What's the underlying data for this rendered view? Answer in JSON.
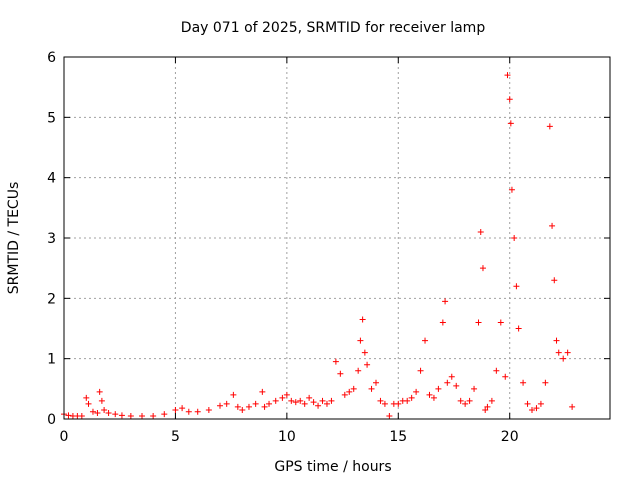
{
  "chart_data": {
    "type": "scatter",
    "title": "Day 071 of 2025, SRMTID for receiver lamp",
    "xlabel": "GPS time / hours",
    "ylabel": "SRMTID / TECUs",
    "xlim": [
      0,
      24.5
    ],
    "ylim": [
      0,
      6
    ],
    "xticks": [
      0,
      5,
      10,
      15,
      20
    ],
    "yticks": [
      0,
      1,
      2,
      3,
      4,
      5,
      6
    ],
    "xtick_labels": [
      "0",
      "5",
      "10",
      "15",
      "20"
    ],
    "ytick_labels": [
      "0",
      "1",
      "2",
      "3",
      "4",
      "5",
      "6"
    ],
    "grid": true,
    "marker": "+",
    "color": "#ff0000",
    "series": [
      {
        "name": "SRMTID",
        "x": [
          0.0,
          0.2,
          0.4,
          0.6,
          0.8,
          1.0,
          1.1,
          1.3,
          1.5,
          1.6,
          1.7,
          1.8,
          2.0,
          2.3,
          2.6,
          3.0,
          3.5,
          4.0,
          4.5,
          5.0,
          5.3,
          5.6,
          6.0,
          6.5,
          7.0,
          7.3,
          7.6,
          7.8,
          8.0,
          8.3,
          8.6,
          8.9,
          9.0,
          9.2,
          9.5,
          9.8,
          10.0,
          10.2,
          10.4,
          10.6,
          10.8,
          11.0,
          11.2,
          11.4,
          11.6,
          11.8,
          12.0,
          12.2,
          12.4,
          12.6,
          12.8,
          13.0,
          13.2,
          13.3,
          13.4,
          13.5,
          13.6,
          13.8,
          14.0,
          14.2,
          14.4,
          14.6,
          14.8,
          15.0,
          15.2,
          15.4,
          15.6,
          15.8,
          16.0,
          16.2,
          16.4,
          16.6,
          16.8,
          17.0,
          17.1,
          17.2,
          17.4,
          17.6,
          17.8,
          18.0,
          18.2,
          18.4,
          18.6,
          18.7,
          18.8,
          18.9,
          19.0,
          19.2,
          19.4,
          19.6,
          19.8,
          19.9,
          20.0,
          20.05,
          20.1,
          20.2,
          20.3,
          20.4,
          20.6,
          20.8,
          21.0,
          21.2,
          21.4,
          21.6,
          21.8,
          21.9,
          22.0,
          22.1,
          22.2,
          22.4,
          22.6,
          22.8
        ],
        "y": [
          0.08,
          0.06,
          0.05,
          0.05,
          0.05,
          0.35,
          0.25,
          0.12,
          0.1,
          0.45,
          0.3,
          0.15,
          0.1,
          0.08,
          0.06,
          0.05,
          0.05,
          0.05,
          0.08,
          0.15,
          0.18,
          0.12,
          0.12,
          0.15,
          0.22,
          0.25,
          0.4,
          0.2,
          0.15,
          0.2,
          0.25,
          0.45,
          0.2,
          0.25,
          0.3,
          0.35,
          0.4,
          0.3,
          0.28,
          0.3,
          0.25,
          0.35,
          0.28,
          0.22,
          0.3,
          0.25,
          0.3,
          0.95,
          0.75,
          0.4,
          0.45,
          0.5,
          0.8,
          1.3,
          1.65,
          1.1,
          0.9,
          0.5,
          0.6,
          0.3,
          0.25,
          0.05,
          0.25,
          0.25,
          0.3,
          0.3,
          0.35,
          0.45,
          0.8,
          1.3,
          0.4,
          0.35,
          0.5,
          1.6,
          1.95,
          0.6,
          0.7,
          0.55,
          0.3,
          0.25,
          0.3,
          0.5,
          1.6,
          3.1,
          2.5,
          0.15,
          0.2,
          0.3,
          0.8,
          1.6,
          0.7,
          5.7,
          5.3,
          4.9,
          3.8,
          3.0,
          2.2,
          1.5,
          0.6,
          0.25,
          0.15,
          0.18,
          0.25,
          0.6,
          4.85,
          3.2,
          2.3,
          1.3,
          1.1,
          1.0,
          1.1,
          0.2
        ]
      }
    ]
  }
}
